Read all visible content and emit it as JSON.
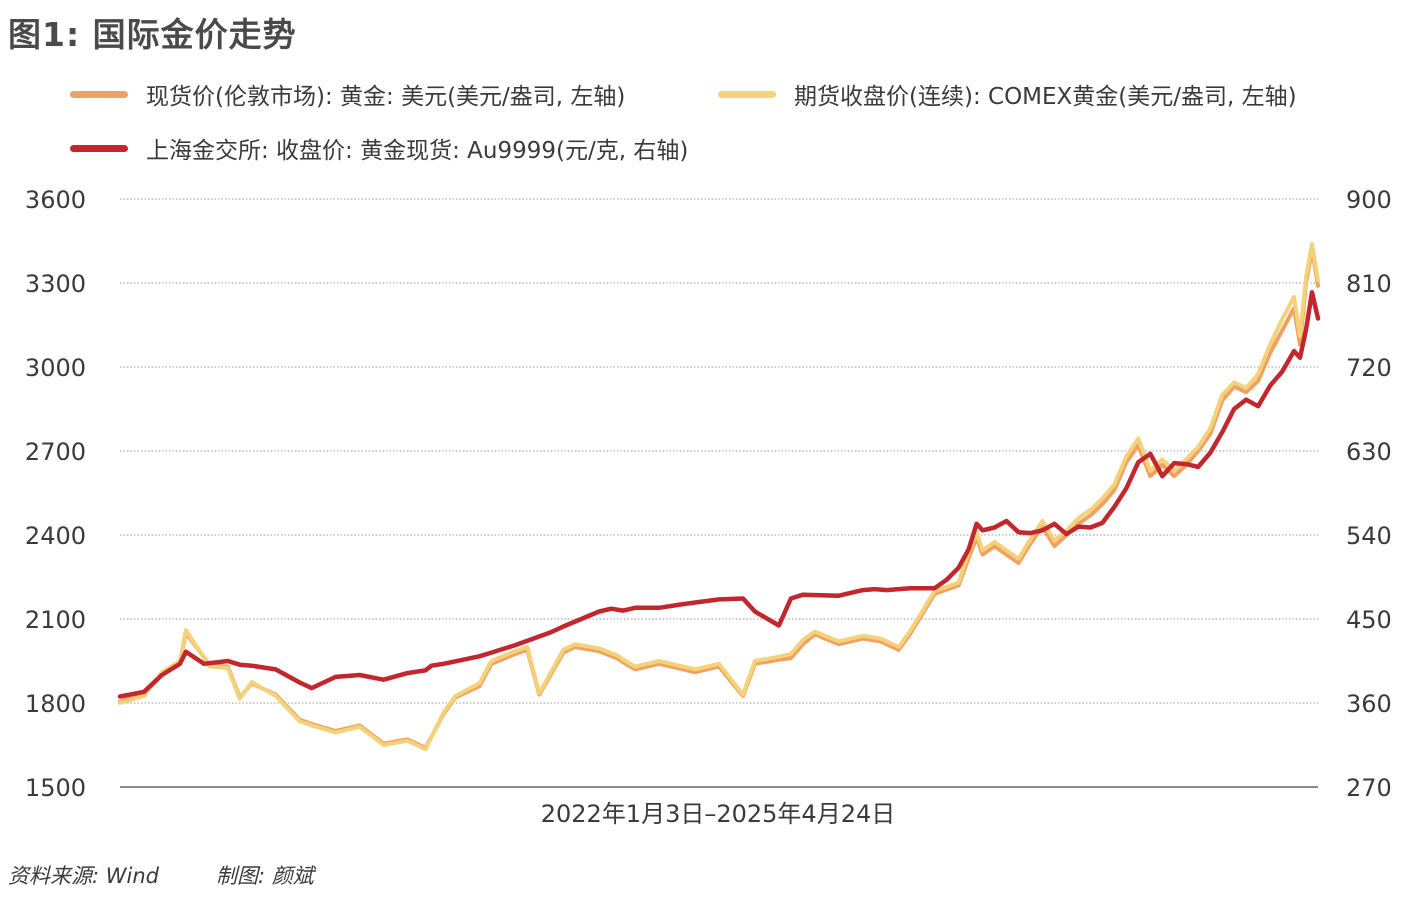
{
  "title": "图1: 国际金价走势",
  "footer": {
    "source": "资料来源: Wind",
    "author": "制图: 颜斌"
  },
  "chart_data": {
    "type": "line",
    "xlabel": "2022年1月3日–2025年4月24日",
    "y_left": {
      "ticks": [
        1500,
        1800,
        2100,
        2400,
        2700,
        3000,
        3300,
        3600
      ],
      "ylim": [
        1500,
        3600
      ]
    },
    "y_right": {
      "ticks": [
        270,
        360,
        450,
        540,
        630,
        720,
        810,
        900
      ],
      "ylim": [
        270,
        900
      ]
    },
    "grid": "horizontal dotted",
    "legend_position": "top",
    "series": [
      {
        "name": "现货价(伦敦市场): 黄金: 美元(美元/盎司, 左轴)",
        "axis": "left",
        "color": "#F0A060",
        "t": [
          0,
          0.02,
          0.035,
          0.05,
          0.055,
          0.075,
          0.09,
          0.1,
          0.11,
          0.13,
          0.15,
          0.16,
          0.18,
          0.2,
          0.22,
          0.24,
          0.255,
          0.27,
          0.28,
          0.3,
          0.31,
          0.33,
          0.34,
          0.35,
          0.37,
          0.38,
          0.4,
          0.415,
          0.42,
          0.43,
          0.45,
          0.47,
          0.48,
          0.5,
          0.52,
          0.53,
          0.55,
          0.56,
          0.57,
          0.58,
          0.6,
          0.62,
          0.635,
          0.65,
          0.66,
          0.68,
          0.7,
          0.7085,
          0.715,
          0.72,
          0.73,
          0.74,
          0.75,
          0.76,
          0.77,
          0.78,
          0.79,
          0.8,
          0.81,
          0.82,
          0.83,
          0.84,
          0.85,
          0.86,
          0.87,
          0.88,
          0.89,
          0.9,
          0.91,
          0.92,
          0.93,
          0.94,
          0.95,
          0.96,
          0.97,
          0.98,
          0.985,
          0.99,
          0.995,
          1.0
        ],
        "values": [
          1805,
          1830,
          1905,
          1945,
          2050,
          1935,
          1930,
          1820,
          1870,
          1830,
          1740,
          1725,
          1700,
          1720,
          1655,
          1670,
          1640,
          1760,
          1820,
          1860,
          1940,
          1975,
          1990,
          1830,
          1980,
          2000,
          1985,
          1960,
          1945,
          1920,
          1940,
          1920,
          1910,
          1930,
          1825,
          1940,
          1955,
          1960,
          2010,
          2045,
          2010,
          2030,
          2020,
          1990,
          2050,
          2190,
          2220,
          2320,
          2390,
          2330,
          2360,
          2330,
          2300,
          2370,
          2430,
          2360,
          2400,
          2440,
          2470,
          2510,
          2560,
          2660,
          2720,
          2610,
          2650,
          2610,
          2650,
          2700,
          2760,
          2880,
          2930,
          2910,
          2950,
          3050,
          3130,
          3210,
          3080,
          3300,
          3420,
          3290
        ]
      },
      {
        "name": "期货收盘价(连续): COMEX黄金(美元/盎司, 左轴)",
        "axis": "left",
        "color": "#F3D27A",
        "t": [
          0,
          0.02,
          0.035,
          0.05,
          0.055,
          0.075,
          0.09,
          0.1,
          0.11,
          0.13,
          0.15,
          0.16,
          0.18,
          0.2,
          0.22,
          0.24,
          0.255,
          0.27,
          0.28,
          0.3,
          0.31,
          0.33,
          0.34,
          0.35,
          0.37,
          0.38,
          0.4,
          0.415,
          0.42,
          0.43,
          0.45,
          0.47,
          0.48,
          0.5,
          0.52,
          0.53,
          0.55,
          0.56,
          0.57,
          0.58,
          0.6,
          0.62,
          0.635,
          0.65,
          0.66,
          0.68,
          0.7,
          0.7085,
          0.715,
          0.72,
          0.73,
          0.74,
          0.75,
          0.76,
          0.77,
          0.78,
          0.79,
          0.8,
          0.81,
          0.82,
          0.83,
          0.84,
          0.85,
          0.86,
          0.87,
          0.88,
          0.89,
          0.9,
          0.91,
          0.92,
          0.93,
          0.94,
          0.95,
          0.96,
          0.97,
          0.98,
          0.985,
          0.99,
          0.995,
          1.0
        ],
        "values": [
          1800,
          1825,
          1910,
          1950,
          2060,
          1930,
          1925,
          1815,
          1875,
          1825,
          1735,
          1720,
          1695,
          1715,
          1650,
          1665,
          1635,
          1765,
          1825,
          1870,
          1950,
          1985,
          2000,
          1835,
          1990,
          2010,
          1995,
          1970,
          1955,
          1930,
          1950,
          1930,
          1920,
          1940,
          1830,
          1950,
          1965,
          1975,
          2025,
          2055,
          2020,
          2040,
          2030,
          2000,
          2060,
          2200,
          2230,
          2340,
          2410,
          2345,
          2375,
          2345,
          2315,
          2385,
          2450,
          2380,
          2415,
          2460,
          2490,
          2530,
          2580,
          2680,
          2745,
          2630,
          2670,
          2630,
          2670,
          2715,
          2780,
          2900,
          2945,
          2925,
          2975,
          3080,
          3170,
          3250,
          3110,
          3320,
          3440,
          3310
        ]
      },
      {
        "name": "上海金交所: 收盘价: 黄金现货: Au9999(元/克, 右轴)",
        "axis": "right",
        "color": "#C1272D",
        "t": [
          0,
          0.02,
          0.035,
          0.05,
          0.055,
          0.07,
          0.09,
          0.1,
          0.11,
          0.13,
          0.15,
          0.16,
          0.18,
          0.2,
          0.22,
          0.24,
          0.255,
          0.26,
          0.27,
          0.3,
          0.31,
          0.33,
          0.36,
          0.37,
          0.4,
          0.41,
          0.42,
          0.43,
          0.45,
          0.47,
          0.5,
          0.52,
          0.53,
          0.55,
          0.56,
          0.57,
          0.6,
          0.62,
          0.63,
          0.64,
          0.66,
          0.68,
          0.69,
          0.7,
          0.7085,
          0.715,
          0.72,
          0.73,
          0.74,
          0.75,
          0.76,
          0.77,
          0.78,
          0.79,
          0.8,
          0.81,
          0.82,
          0.83,
          0.84,
          0.85,
          0.86,
          0.87,
          0.88,
          0.89,
          0.9,
          0.91,
          0.92,
          0.93,
          0.94,
          0.95,
          0.96,
          0.97,
          0.98,
          0.985,
          0.99,
          0.995,
          1.0
        ],
        "values": [
          367,
          372,
          390,
          402,
          415,
          402,
          405,
          401,
          400,
          396,
          382,
          376,
          388,
          390,
          385,
          392,
          395,
          400,
          402,
          410,
          414,
          422,
          436,
          442,
          458,
          461,
          459,
          462,
          462,
          466,
          471,
          472,
          458,
          443,
          472,
          476,
          475,
          481,
          482,
          481,
          483,
          483,
          492,
          505,
          525,
          552,
          545,
          548,
          555,
          543,
          542,
          545,
          552,
          541,
          549,
          548,
          553,
          570,
          590,
          618,
          627,
          603,
          617,
          616,
          613,
          628,
          650,
          675,
          685,
          678,
          700,
          715,
          737,
          730,
          760,
          800,
          772
        ]
      }
    ]
  }
}
